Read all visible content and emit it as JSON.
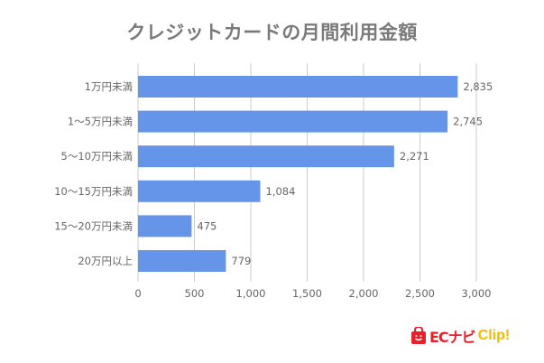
{
  "chart_data": {
    "type": "bar",
    "orientation": "horizontal",
    "title": "クレジットカードの月間利用金額",
    "categories": [
      "1万円未満",
      "1〜5万円未満",
      "5〜10万円未満",
      "10〜15万円未満",
      "15〜20万円未満",
      "20万円以上"
    ],
    "values": [
      2835,
      2745,
      2271,
      1084,
      475,
      779
    ],
    "data_labels": [
      "2,835",
      "2,745",
      "2,271",
      "1,084",
      "475",
      "779"
    ],
    "xlim": [
      0,
      3000
    ],
    "xticks": [
      0,
      500,
      1000,
      1500,
      2000,
      2500,
      3000
    ],
    "xtick_labels": [
      "0",
      "500",
      "1,000",
      "1,500",
      "2,000",
      "2,500",
      "3,000"
    ],
    "xlabel": "",
    "ylabel": "",
    "grid": "vertical",
    "bar_color": "#6495e8"
  },
  "logo": {
    "text_ec": "ECナビ",
    "text_clip": "Clip!",
    "colors": {
      "ec": "#e8202a",
      "clip": "#f5b800"
    }
  }
}
